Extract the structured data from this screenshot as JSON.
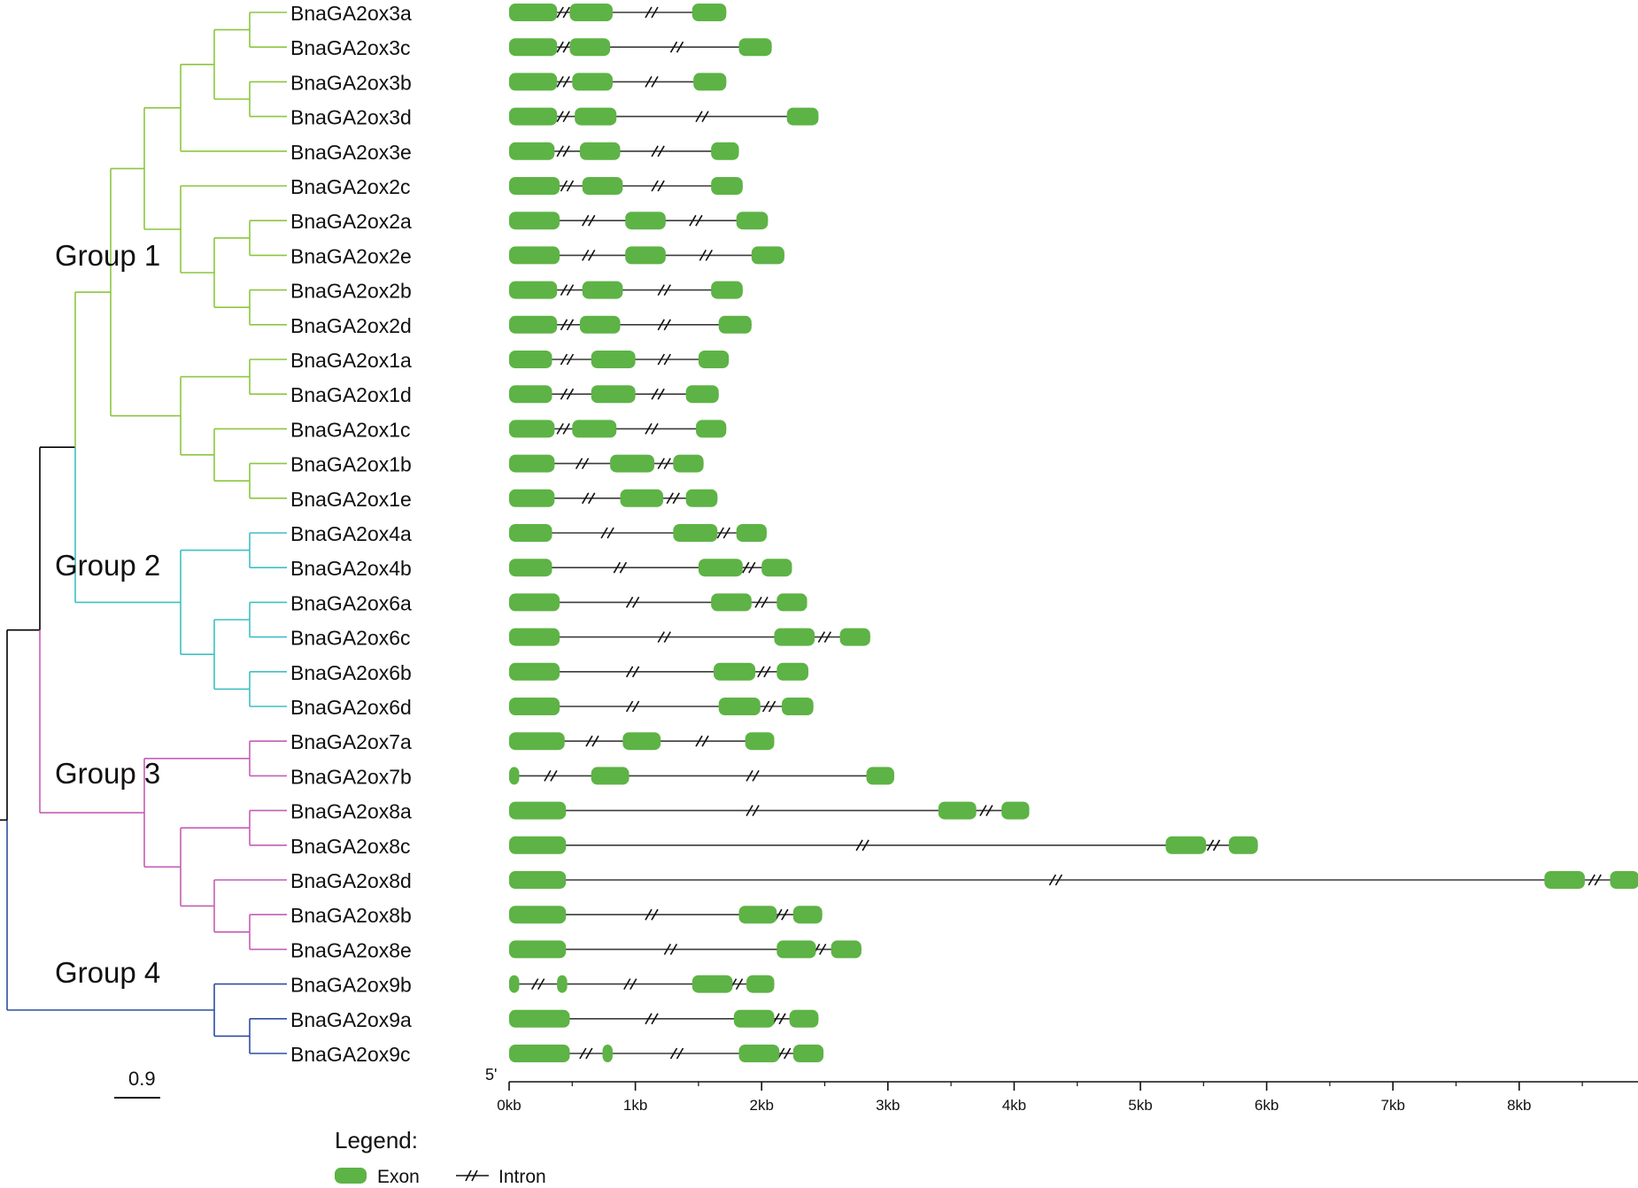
{
  "colors": {
    "group1": "#8cc63f",
    "group2": "#3ebfc3",
    "group3": "#c45eb5",
    "group4": "#2e4ea2",
    "root": "#000000",
    "exon": "#5db345",
    "intron": "#3a3a3a"
  },
  "groups": [
    {
      "key": "group1",
      "label": "Group 1"
    },
    {
      "key": "group2",
      "label": "Group 2"
    },
    {
      "key": "group3",
      "label": "Group 3"
    },
    {
      "key": "group4",
      "label": "Group 4"
    }
  ],
  "scale_bar_label": "0.9",
  "axis": {
    "five_prime_label": "5'",
    "ticks": [
      "0kb",
      "1kb",
      "2kb",
      "3kb",
      "4kb",
      "5kb",
      "6kb",
      "7kb",
      "8kb"
    ],
    "max_kb": 8.95
  },
  "legend": {
    "title": "Legend:",
    "exon_label": "Exon",
    "intron_label": "Intron"
  },
  "genes": [
    {
      "name": "BnaGA2ox3a",
      "group": "group1",
      "exons": [
        [
          0,
          0.38
        ],
        [
          0.48,
          0.82
        ],
        [
          1.45,
          1.72
        ]
      ],
      "breaks": [
        0.45,
        1.15
      ]
    },
    {
      "name": "BnaGA2ox3c",
      "group": "group1",
      "exons": [
        [
          0,
          0.38
        ],
        [
          0.48,
          0.8
        ],
        [
          1.82,
          2.08
        ]
      ],
      "breaks": [
        0.45,
        1.35
      ]
    },
    {
      "name": "BnaGA2ox3b",
      "group": "group1",
      "exons": [
        [
          0,
          0.38
        ],
        [
          0.5,
          0.82
        ],
        [
          1.46,
          1.72
        ]
      ],
      "breaks": [
        0.45,
        1.15
      ]
    },
    {
      "name": "BnaGA2ox3d",
      "group": "group1",
      "exons": [
        [
          0,
          0.38
        ],
        [
          0.52,
          0.85
        ],
        [
          2.2,
          2.45
        ]
      ],
      "breaks": [
        0.45,
        1.55
      ]
    },
    {
      "name": "BnaGA2ox3e",
      "group": "group1",
      "exons": [
        [
          0,
          0.36
        ],
        [
          0.56,
          0.88
        ],
        [
          1.6,
          1.82
        ]
      ],
      "breaks": [
        0.45,
        1.2
      ]
    },
    {
      "name": "BnaGA2ox2c",
      "group": "group1",
      "exons": [
        [
          0,
          0.4
        ],
        [
          0.58,
          0.9
        ],
        [
          1.6,
          1.85
        ]
      ],
      "breaks": [
        0.48,
        1.2
      ]
    },
    {
      "name": "BnaGA2ox2a",
      "group": "group1",
      "exons": [
        [
          0,
          0.4
        ],
        [
          0.92,
          1.24
        ],
        [
          1.8,
          2.05
        ]
      ],
      "breaks": [
        0.65,
        1.5
      ]
    },
    {
      "name": "BnaGA2ox2e",
      "group": "group1",
      "exons": [
        [
          0,
          0.4
        ],
        [
          0.92,
          1.24
        ],
        [
          1.92,
          2.18
        ]
      ],
      "breaks": [
        0.65,
        1.58
      ]
    },
    {
      "name": "BnaGA2ox2b",
      "group": "group1",
      "exons": [
        [
          0,
          0.38
        ],
        [
          0.58,
          0.9
        ],
        [
          1.6,
          1.85
        ]
      ],
      "breaks": [
        0.48,
        1.25
      ]
    },
    {
      "name": "BnaGA2ox2d",
      "group": "group1",
      "exons": [
        [
          0,
          0.38
        ],
        [
          0.56,
          0.88
        ],
        [
          1.66,
          1.92
        ]
      ],
      "breaks": [
        0.48,
        1.25
      ]
    },
    {
      "name": "BnaGA2ox1a",
      "group": "group1",
      "exons": [
        [
          0,
          0.34
        ],
        [
          0.65,
          1.0
        ],
        [
          1.5,
          1.74
        ]
      ],
      "breaks": [
        0.48,
        1.25
      ]
    },
    {
      "name": "BnaGA2ox1d",
      "group": "group1",
      "exons": [
        [
          0,
          0.34
        ],
        [
          0.65,
          1.0
        ],
        [
          1.4,
          1.66
        ]
      ],
      "breaks": [
        0.48,
        1.2
      ]
    },
    {
      "name": "BnaGA2ox1c",
      "group": "group1",
      "exons": [
        [
          0,
          0.36
        ],
        [
          0.5,
          0.85
        ],
        [
          1.48,
          1.72
        ]
      ],
      "breaks": [
        0.45,
        1.15
      ]
    },
    {
      "name": "BnaGA2ox1b",
      "group": "group1",
      "exons": [
        [
          0,
          0.36
        ],
        [
          0.8,
          1.15
        ],
        [
          1.3,
          1.54
        ]
      ],
      "breaks": [
        0.6,
        1.25
      ]
    },
    {
      "name": "BnaGA2ox1e",
      "group": "group1",
      "exons": [
        [
          0,
          0.36
        ],
        [
          0.88,
          1.22
        ],
        [
          1.4,
          1.65
        ]
      ],
      "breaks": [
        0.65,
        1.32
      ]
    },
    {
      "name": "BnaGA2ox4a",
      "group": "group2",
      "exons": [
        [
          0,
          0.34
        ],
        [
          1.3,
          1.65
        ],
        [
          1.8,
          2.04
        ]
      ],
      "breaks": [
        0.8,
        1.72
      ]
    },
    {
      "name": "BnaGA2ox4b",
      "group": "group2",
      "exons": [
        [
          0,
          0.34
        ],
        [
          1.5,
          1.85
        ],
        [
          2.0,
          2.24
        ]
      ],
      "breaks": [
        0.9,
        1.92
      ]
    },
    {
      "name": "BnaGA2ox6a",
      "group": "group2",
      "exons": [
        [
          0,
          0.4
        ],
        [
          1.6,
          1.92
        ],
        [
          2.12,
          2.36
        ]
      ],
      "breaks": [
        1.0,
        2.02
      ]
    },
    {
      "name": "BnaGA2ox6c",
      "group": "group2",
      "exons": [
        [
          0,
          0.4
        ],
        [
          2.1,
          2.42
        ],
        [
          2.62,
          2.86
        ]
      ],
      "breaks": [
        1.25,
        2.52
      ]
    },
    {
      "name": "BnaGA2ox6b",
      "group": "group2",
      "exons": [
        [
          0,
          0.4
        ],
        [
          1.62,
          1.95
        ],
        [
          2.12,
          2.37
        ]
      ],
      "breaks": [
        1.0,
        2.04
      ]
    },
    {
      "name": "BnaGA2ox6d",
      "group": "group2",
      "exons": [
        [
          0,
          0.4
        ],
        [
          1.66,
          1.99
        ],
        [
          2.16,
          2.41
        ]
      ],
      "breaks": [
        1.0,
        2.08
      ]
    },
    {
      "name": "BnaGA2ox7a",
      "group": "group3",
      "exons": [
        [
          0,
          0.44
        ],
        [
          0.9,
          1.2
        ],
        [
          1.87,
          2.1
        ]
      ],
      "breaks": [
        0.68,
        1.55
      ]
    },
    {
      "name": "BnaGA2ox7b",
      "group": "group3",
      "exons": [
        [
          0,
          0.08
        ],
        [
          0.65,
          0.95
        ],
        [
          2.83,
          3.05
        ]
      ],
      "breaks": [
        0.35,
        1.95
      ]
    },
    {
      "name": "BnaGA2ox8a",
      "group": "group3",
      "exons": [
        [
          0,
          0.45
        ],
        [
          3.4,
          3.7
        ],
        [
          3.9,
          4.12
        ]
      ],
      "breaks": [
        1.95,
        3.8
      ]
    },
    {
      "name": "BnaGA2ox8c",
      "group": "group3",
      "exons": [
        [
          0,
          0.45
        ],
        [
          5.2,
          5.52
        ],
        [
          5.7,
          5.93
        ]
      ],
      "breaks": [
        2.82,
        5.6
      ]
    },
    {
      "name": "BnaGA2ox8d",
      "group": "group3",
      "exons": [
        [
          0,
          0.45
        ],
        [
          8.2,
          8.52
        ],
        [
          8.72,
          8.95
        ]
      ],
      "breaks": [
        4.35,
        8.62
      ]
    },
    {
      "name": "BnaGA2ox8b",
      "group": "group3",
      "exons": [
        [
          0,
          0.45
        ],
        [
          1.82,
          2.12
        ],
        [
          2.25,
          2.48
        ]
      ],
      "breaks": [
        1.15,
        2.18
      ]
    },
    {
      "name": "BnaGA2ox8e",
      "group": "group3",
      "exons": [
        [
          0,
          0.45
        ],
        [
          2.12,
          2.43
        ],
        [
          2.55,
          2.79
        ]
      ],
      "breaks": [
        1.3,
        2.48
      ]
    },
    {
      "name": "BnaGA2ox9b",
      "group": "group4",
      "exons": [
        [
          0,
          0.08
        ],
        [
          0.38,
          0.46
        ],
        [
          1.45,
          1.77
        ],
        [
          1.88,
          2.1
        ]
      ],
      "breaks": [
        0.25,
        0.98,
        1.82
      ]
    },
    {
      "name": "BnaGA2ox9a",
      "group": "group4",
      "exons": [
        [
          0,
          0.48
        ],
        [
          1.78,
          2.1
        ],
        [
          2.22,
          2.45
        ]
      ],
      "breaks": [
        1.15,
        2.16
      ]
    },
    {
      "name": "BnaGA2ox9c",
      "group": "group4",
      "exons": [
        [
          0,
          0.48
        ],
        [
          0.74,
          0.82
        ],
        [
          1.82,
          2.14
        ],
        [
          2.25,
          2.49
        ]
      ],
      "breaks": [
        0.63,
        1.35,
        2.2
      ]
    }
  ]
}
